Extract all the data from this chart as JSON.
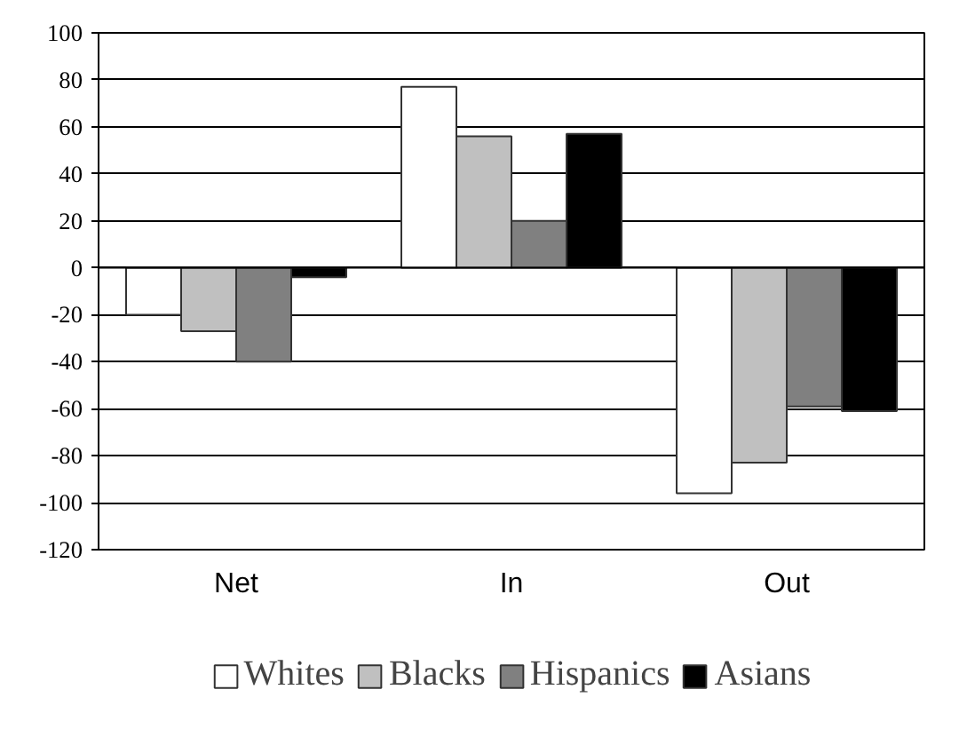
{
  "chart_data": {
    "type": "bar",
    "categories": [
      "Net",
      "In",
      "Out"
    ],
    "series": [
      {
        "name": "Whites",
        "color": "#ffffff",
        "values": [
          -20,
          77,
          -96
        ]
      },
      {
        "name": "Blacks",
        "color": "#c0c0c0",
        "values": [
          -27,
          56,
          -83
        ]
      },
      {
        "name": "Hispanics",
        "color": "#808080",
        "values": [
          -40,
          20,
          -59
        ]
      },
      {
        "name": "Asians",
        "color": "#000000",
        "values": [
          -4,
          57,
          -61
        ]
      }
    ],
    "ylim": [
      -120,
      100
    ],
    "yticks": [
      -120,
      -100,
      -80,
      -60,
      -40,
      -20,
      0,
      20,
      40,
      60,
      80,
      100
    ],
    "grid": "y",
    "legend": "bottom"
  }
}
